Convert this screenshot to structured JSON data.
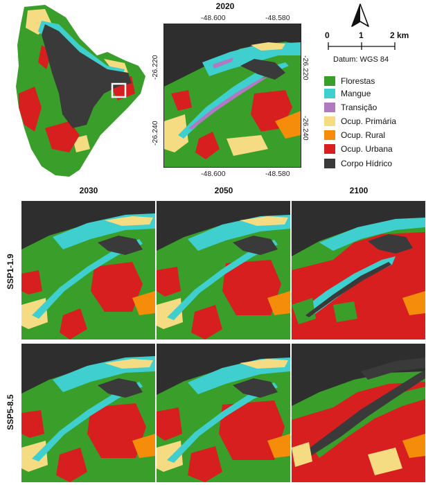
{
  "inset_title": "2020",
  "inset_x_ticks_top": [
    "-48.600",
    "-48.580"
  ],
  "inset_x_ticks_bottom": [
    "-48.600",
    "-48.580"
  ],
  "inset_y_ticks_left": [
    "-26.220",
    "-26.240"
  ],
  "inset_y_ticks_right": [
    "-26.220",
    "-26.240"
  ],
  "scalebar": {
    "labels": [
      "0",
      "1",
      "2 km"
    ]
  },
  "datum": "Datum: WGS 84",
  "north_arrow_icon": "north-arrow-icon",
  "legend": [
    {
      "label": "Florestas",
      "color": "#3a9e2a"
    },
    {
      "label": "Mangue",
      "color": "#3fcfcf"
    },
    {
      "label": "Transição",
      "color": "#b07ac2"
    },
    {
      "label": "Ocup. Primária",
      "color": "#f5dc82"
    },
    {
      "label": "Ocup. Rural",
      "color": "#f58c0a"
    },
    {
      "label": "Ocup. Urbana",
      "color": "#d81f1f"
    },
    {
      "label": "Corpo Hídrico",
      "color": "#3a3a3a"
    }
  ],
  "col_titles": [
    "2030",
    "2050",
    "2100"
  ],
  "row_titles": [
    "SSP1-1.9",
    "SSP5-8.5"
  ]
}
